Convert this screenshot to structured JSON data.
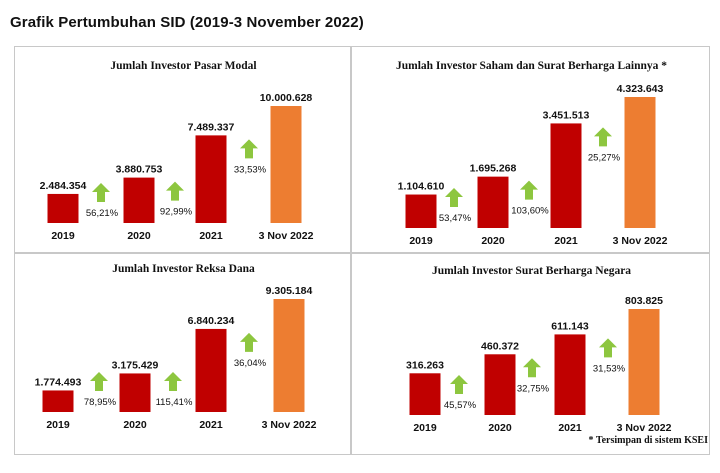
{
  "page_title": "Grafik Pertumbuhan SID (2019-3 November 2022)",
  "footnote": "* Tersimpan di sistem KSEI",
  "colors": {
    "bar_dark": "#c00000",
    "bar_highlight": "#ed7d31",
    "arrow": "#8dc63f",
    "panel_border": "#c8c8c8"
  },
  "chart_data": [
    {
      "type": "bar",
      "title": "Jumlah Investor Pasar Modal",
      "categories": [
        "2019",
        "2020",
        "2021",
        "3 Nov 2022"
      ],
      "values": [
        2484354,
        3880753,
        7489337,
        10000628
      ],
      "value_labels": [
        "2.484.354",
        "3.880.753",
        "7.489.337",
        "10.000.628"
      ],
      "growth_labels": [
        "56,21%",
        "92,99%",
        "33,53%"
      ],
      "highlight_last": true
    },
    {
      "type": "bar",
      "title": "Jumlah Investor Saham dan Surat Berharga Lainnya *",
      "categories": [
        "2019",
        "2020",
        "2021",
        "3 Nov 2022"
      ],
      "values": [
        1104610,
        1695268,
        3451513,
        4323643
      ],
      "value_labels": [
        "1.104.610",
        "1.695.268",
        "3.451.513",
        "4.323.643"
      ],
      "growth_labels": [
        "53,47%",
        "103,60%",
        "25,27%"
      ],
      "highlight_last": true
    },
    {
      "type": "bar",
      "title": "Jumlah Investor Reksa Dana",
      "categories": [
        "2019",
        "2020",
        "2021",
        "3 Nov 2022"
      ],
      "values": [
        1774493,
        3175429,
        6840234,
        9305184
      ],
      "value_labels": [
        "1.774.493",
        "3.175.429",
        "6.840.234",
        "9.305.184"
      ],
      "growth_labels": [
        "78,95%",
        "115,41%",
        "36,04%"
      ],
      "highlight_last": true
    },
    {
      "type": "bar",
      "title": "Jumlah Investor Surat Berharga Negara",
      "categories": [
        "2019",
        "2020",
        "2021",
        "3 Nov 2022"
      ],
      "values": [
        316263,
        460372,
        611143,
        803825
      ],
      "value_labels": [
        "316.263",
        "460.372",
        "611.143",
        "803.825"
      ],
      "growth_labels": [
        "45,57%",
        "32,75%",
        "31,53%"
      ],
      "highlight_last": true
    }
  ]
}
